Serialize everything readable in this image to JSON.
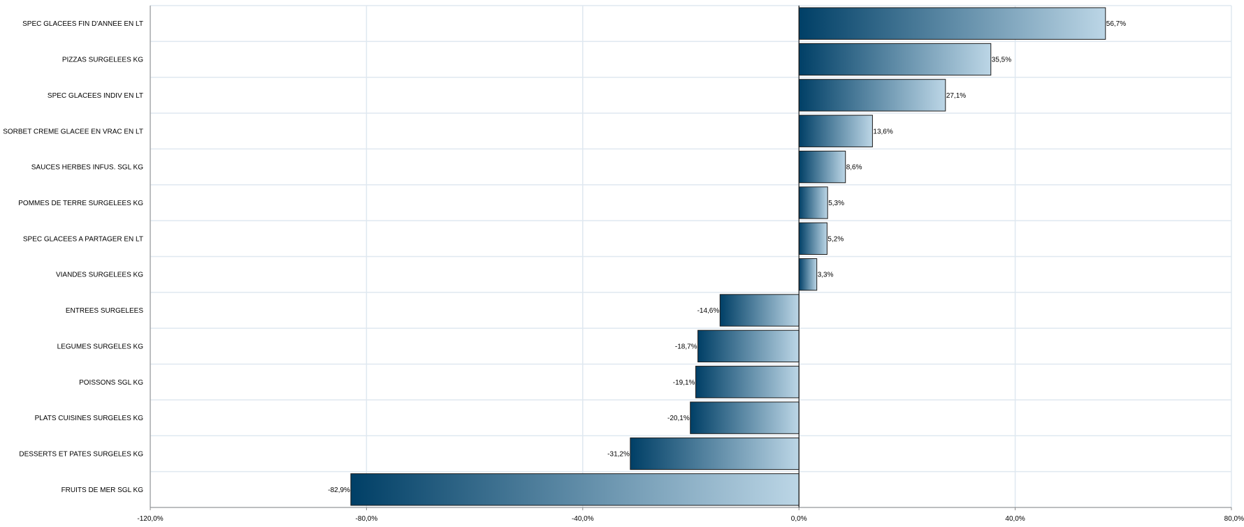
{
  "chart_data": {
    "type": "bar",
    "orientation": "horizontal",
    "categories": [
      "SPEC GLACEES FIN D'ANNEE EN LT",
      "PIZZAS SURGELEES KG",
      "SPEC GLACEES INDIV EN LT",
      "SORBET CREME GLACEE EN VRAC EN LT",
      "SAUCES  HERBES INFUS. SGL KG",
      "POMMES DE TERRE SURGELEES KG",
      "SPEC GLACEES A PARTAGER EN LT",
      "VIANDES SURGELEES KG",
      "ENTREES SURGELEES",
      "LEGUMES SURGELES KG",
      "POISSONS SGL KG",
      "PLATS CUISINES SURGELES KG",
      "DESSERTS ET PATES SURGELES KG",
      "FRUITS DE MER SGL KG"
    ],
    "values": [
      56.7,
      35.5,
      27.1,
      13.6,
      8.6,
      5.3,
      5.2,
      3.3,
      -14.6,
      -18.7,
      -19.1,
      -20.1,
      -31.2,
      -82.9
    ],
    "value_labels": [
      "56,7%",
      "35,5%",
      "27,1%",
      "13,6%",
      "8,6%",
      "5,3%",
      "5,2%",
      "3,3%",
      "-14,6%",
      "-18,7%",
      "-19,1%",
      "-20,1%",
      "-31,2%",
      "-82,9%"
    ],
    "xlim": [
      -120,
      80
    ],
    "xticks": [
      -120,
      -80,
      -40,
      0,
      40,
      80
    ],
    "xtick_labels": [
      "-120,0%",
      "-80,0%",
      "-40,0%",
      "0,0%",
      "40,0%",
      "80,0%"
    ],
    "grid": true,
    "colors": {
      "bar_dark": "#003f66",
      "bar_light": "#bcd6e6",
      "grid": "#dfe8f0",
      "axis": "#888888"
    }
  }
}
